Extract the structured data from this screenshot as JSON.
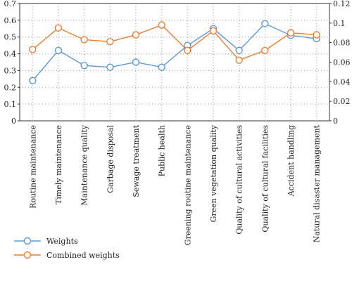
{
  "chart_data": {
    "type": "line",
    "categories": [
      "Routine maintenance",
      "Timely maintenance",
      "Maintenance quality",
      "Garbage disposal",
      "Sewage treatment",
      "Public health",
      "Greening routine maintenance",
      "Green vegetation quality",
      "Quality of cultural activities",
      "Quality of cultural facilities",
      "Accident handling",
      "Natural disaster management"
    ],
    "series": [
      {
        "name": "Weights",
        "axis": "left",
        "color": "#5b9bd5",
        "values": [
          0.24,
          0.42,
          0.33,
          0.32,
          0.35,
          0.32,
          0.45,
          0.55,
          0.42,
          0.58,
          0.51,
          0.49
        ]
      },
      {
        "name": "Combined weights",
        "axis": "right",
        "color": "#ed7d31",
        "values": [
          0.073,
          0.095,
          0.083,
          0.081,
          0.088,
          0.098,
          0.072,
          0.092,
          0.062,
          0.072,
          0.09,
          0.088
        ]
      }
    ],
    "ylim_left": [
      0,
      0.7
    ],
    "yticks_left": [
      "0",
      "0.1",
      "0.2",
      "0.3",
      "0.4",
      "0.5",
      "0.6",
      "0.7"
    ],
    "ylim_right": [
      0,
      0.12
    ],
    "yticks_right": [
      "0",
      "0.02",
      "0.04",
      "0.06",
      "0.08",
      "0.1",
      "0.12"
    ],
    "grid": "dotted",
    "legend_position": "bottom-left",
    "xlabel": "",
    "ylabel": ""
  }
}
